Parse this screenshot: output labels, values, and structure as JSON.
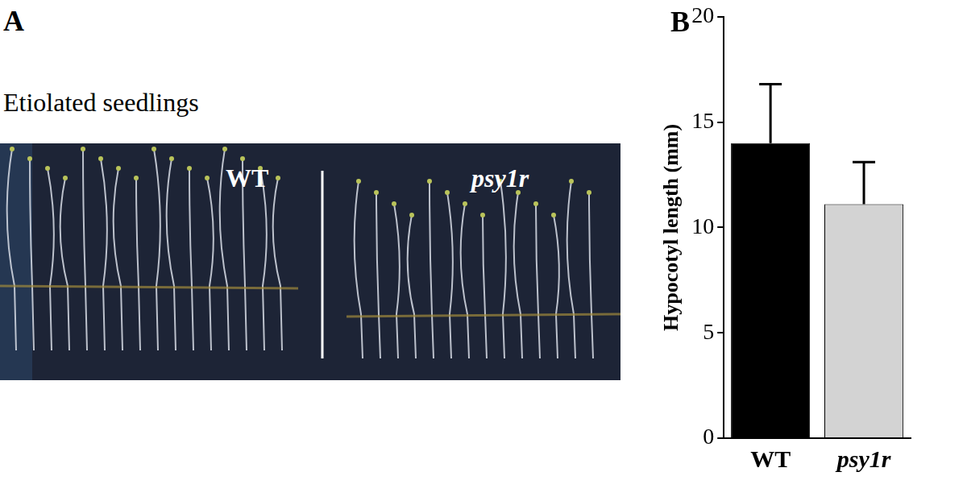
{
  "photo_panel": {
    "label": "A",
    "title": "Etiolated seedlings",
    "image_labels": [
      "WT",
      "psy1r"
    ]
  },
  "chart_data": {
    "type": "bar",
    "annotations": [
      "B"
    ],
    "y_label": "Hypocotyl length (mm)",
    "categories": [
      "WT",
      "psy1r"
    ],
    "values": [
      14.0,
      11.1
    ],
    "errors": [
      2.8,
      2.0
    ],
    "colors": [
      "#000000",
      "#d3d3d3"
    ],
    "ylim": [
      0,
      20
    ],
    "yticks": [
      0,
      5,
      10,
      15,
      20
    ],
    "grid": false
  }
}
